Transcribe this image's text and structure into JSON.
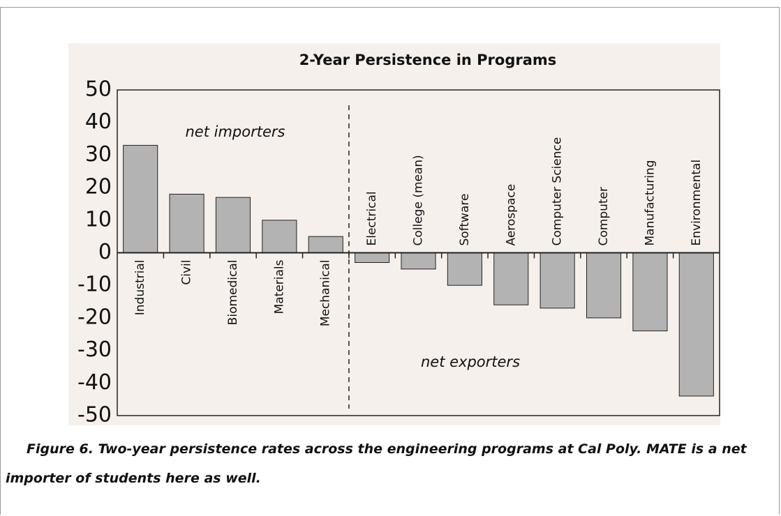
{
  "chart_data": {
    "type": "bar",
    "title": "2-Year Persistence in Programs",
    "categories": [
      "Industrial",
      "Civil",
      "Biomedical",
      "Materials",
      "Mechanical",
      "Electrical",
      "College (mean)",
      "Software",
      "Aerospace",
      "Computer Science",
      "Computer",
      "Manufacturing",
      "Environmental"
    ],
    "values": [
      33,
      18,
      17,
      10,
      5,
      -3,
      -5,
      -10,
      -16,
      -17,
      -20,
      -24,
      -44
    ],
    "color": "#b3b3b3",
    "ylim": [
      -50,
      50
    ],
    "yticks": [
      -50,
      -40,
      -30,
      -20,
      -10,
      0,
      10,
      20,
      30,
      40,
      50
    ],
    "grid": false,
    "annotations": [
      "net importers",
      "net exporters"
    ]
  },
  "caption": "Figure 6. Two-year persistence rates across the engineering programs at Cal Poly. MATE is a net importer of students here as well."
}
